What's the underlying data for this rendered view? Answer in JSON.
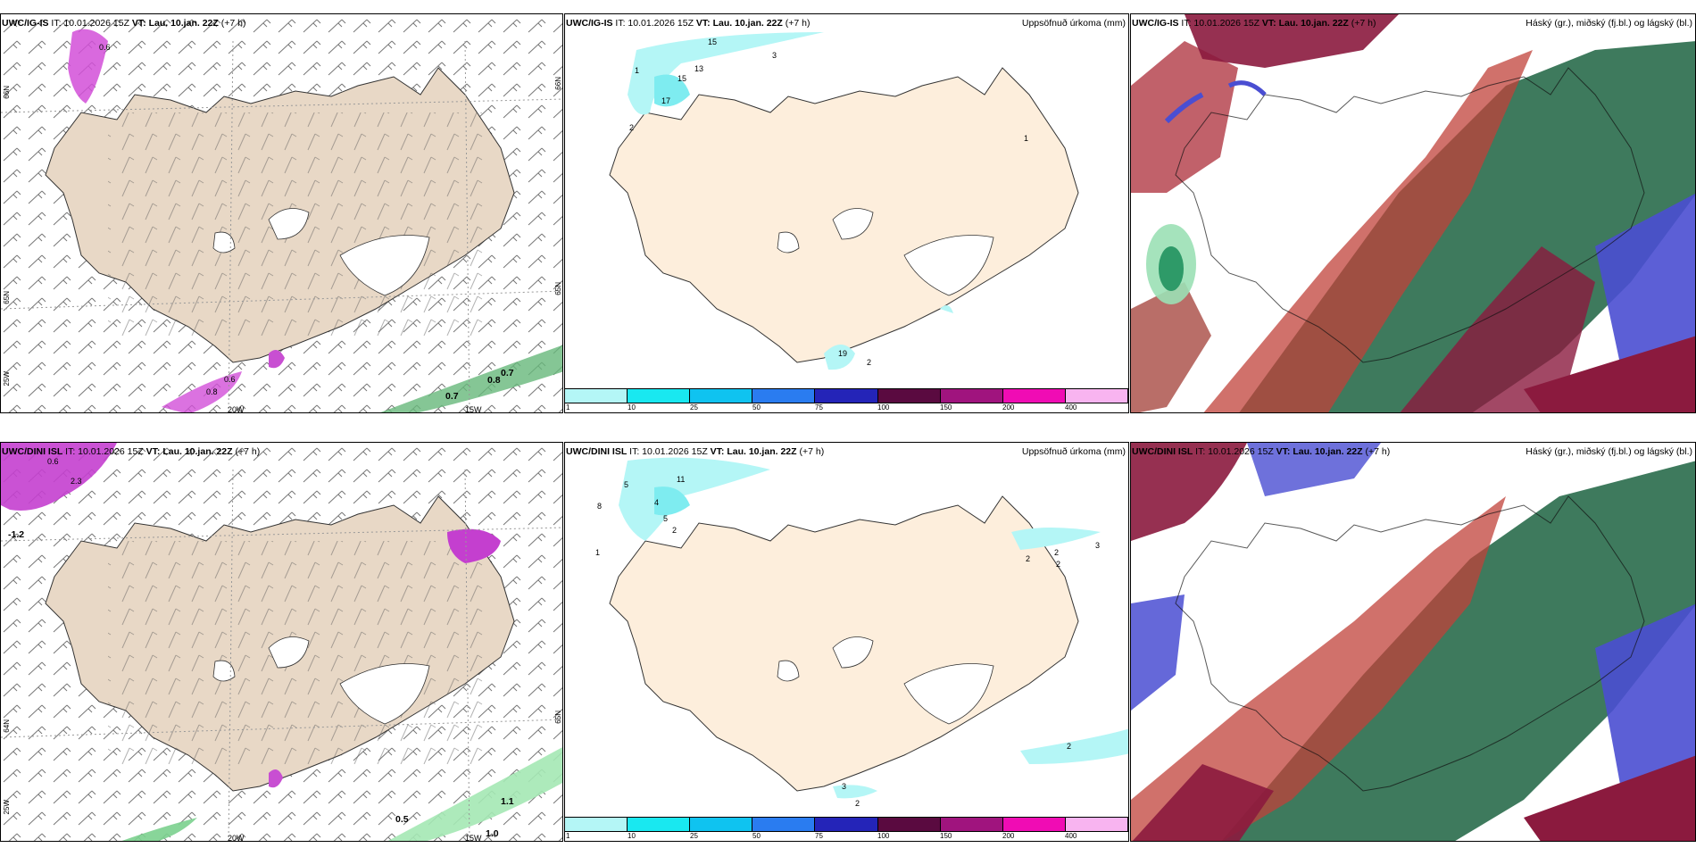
{
  "panels": {
    "r1c1": {
      "model": "UWC/IG-IS",
      "it": "IT: 10.01.2026 15Z",
      "vt": "VT: Lau. 10.jan. 22Z",
      "lead": "(+7 h)"
    },
    "r1c2": {
      "model": "UWC/IG-IS",
      "it": "IT: 10.01.2026 15Z",
      "vt": "VT: Lau. 10.jan. 22Z",
      "lead": "(+7 h)",
      "title_right": "Uppsöfnuð úrkoma (mm)"
    },
    "r1c3": {
      "model": "UWC/IG-IS",
      "it": "IT: 10.01.2026 15Z",
      "vt": "VT: Lau. 10.jan. 22Z",
      "lead": "(+7 h)",
      "title_right": "Háský (gr.), miðský (fj.bl.) og lágský (bl.)"
    },
    "r2c1": {
      "model": "UWC/DINI ISL",
      "it": "IT: 10.01.2026 15Z",
      "vt": "VT: Lau. 10.jan. 22Z",
      "lead": "(+7 h)"
    },
    "r2c2": {
      "model": "UWC/DINI ISL",
      "it": "IT: 10.01.2026 15Z",
      "vt": "VT: Lau. 10.jan. 22Z",
      "lead": "(+7 h)",
      "title_right": "Uppsöfnuð úrkoma (mm)"
    },
    "r2c3": {
      "model": "UWC/DINI ISL",
      "it": "IT: 10.01.2026 15Z",
      "vt": "VT: Lau. 10.jan. 22Z",
      "lead": "(+7 h)",
      "title_right": "Háský (gr.), miðský (fj.bl.) og lágský (bl.)"
    }
  },
  "axes": {
    "lon_20": "20W",
    "lon_15": "15W",
    "lon_25": "25W",
    "lat_66": "66N",
    "lat_64": "64N",
    "lat_65": "65N"
  },
  "r1c1_labels": [
    "0.7",
    "0.8",
    "0.7",
    "0.8",
    "0.6",
    "0.6"
  ],
  "r2c1_labels": [
    "-1.2",
    "0.5",
    "1.1",
    "1.0",
    "2.3",
    "0.6"
  ],
  "r1c2_labels": [
    "15",
    "3",
    "1",
    "2",
    "17",
    "15",
    "13",
    "1",
    "19",
    "2"
  ],
  "r2c2_labels": [
    "5",
    "8",
    "1",
    "11",
    "4",
    "5",
    "2",
    "2",
    "2",
    "2",
    "3",
    "2",
    "2",
    "3"
  ],
  "colorbar": {
    "ticks": [
      "1",
      "10",
      "25",
      "50",
      "75",
      "100",
      "150",
      "200",
      "400"
    ],
    "colors": [
      "#b4f6f6",
      "#19e8f0",
      "#0fc3f0",
      "#2a7cf0",
      "#2424b8",
      "#5a0a40",
      "#a0147e",
      "#f00cb4",
      "#f8b4f0"
    ]
  },
  "colors": {
    "land": "#f0dcc6",
    "precip_land": "#fdeedc",
    "glacier": "#ffffff"
  }
}
